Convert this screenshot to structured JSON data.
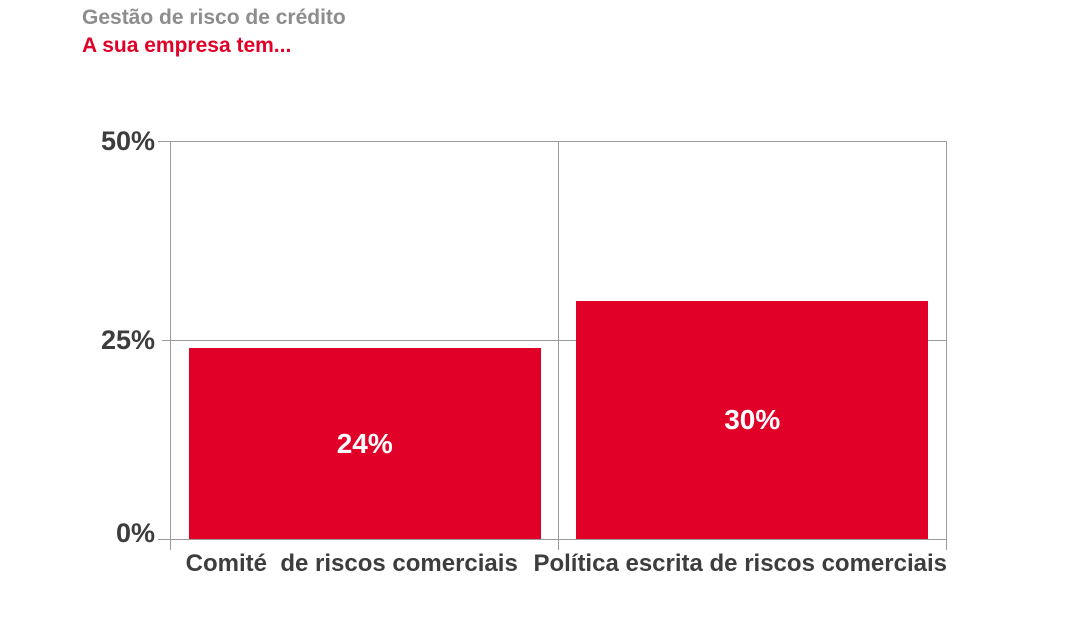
{
  "header": {
    "title": "Gestão de risco de crédito",
    "subtitle": "A sua empresa tem..."
  },
  "chart_data": {
    "type": "bar",
    "title": "Gestão de risco de crédito",
    "subtitle": "A sua empresa tem...",
    "categories": [
      "Comité  de riscos comerciais",
      "Política escrita de riscos comerciais"
    ],
    "values": [
      24,
      30
    ],
    "value_labels": [
      "24%",
      "30%"
    ],
    "ylim": [
      0,
      50
    ],
    "yticks": [
      "50%",
      "25%",
      "0%"
    ],
    "grid": "horizontal gridline at 25%, vertical divider between the two category cells, outer box border with small outward ticks",
    "legend": "none",
    "bar_color": "#e00028"
  },
  "colors": {
    "bar_red": "#e00028",
    "title_gray": "#8d8d8d",
    "axis_text": "#3d3d3d",
    "line_gray": "#9b9b9b",
    "value_label_text": "#ffffff",
    "background": "#ffffff"
  }
}
